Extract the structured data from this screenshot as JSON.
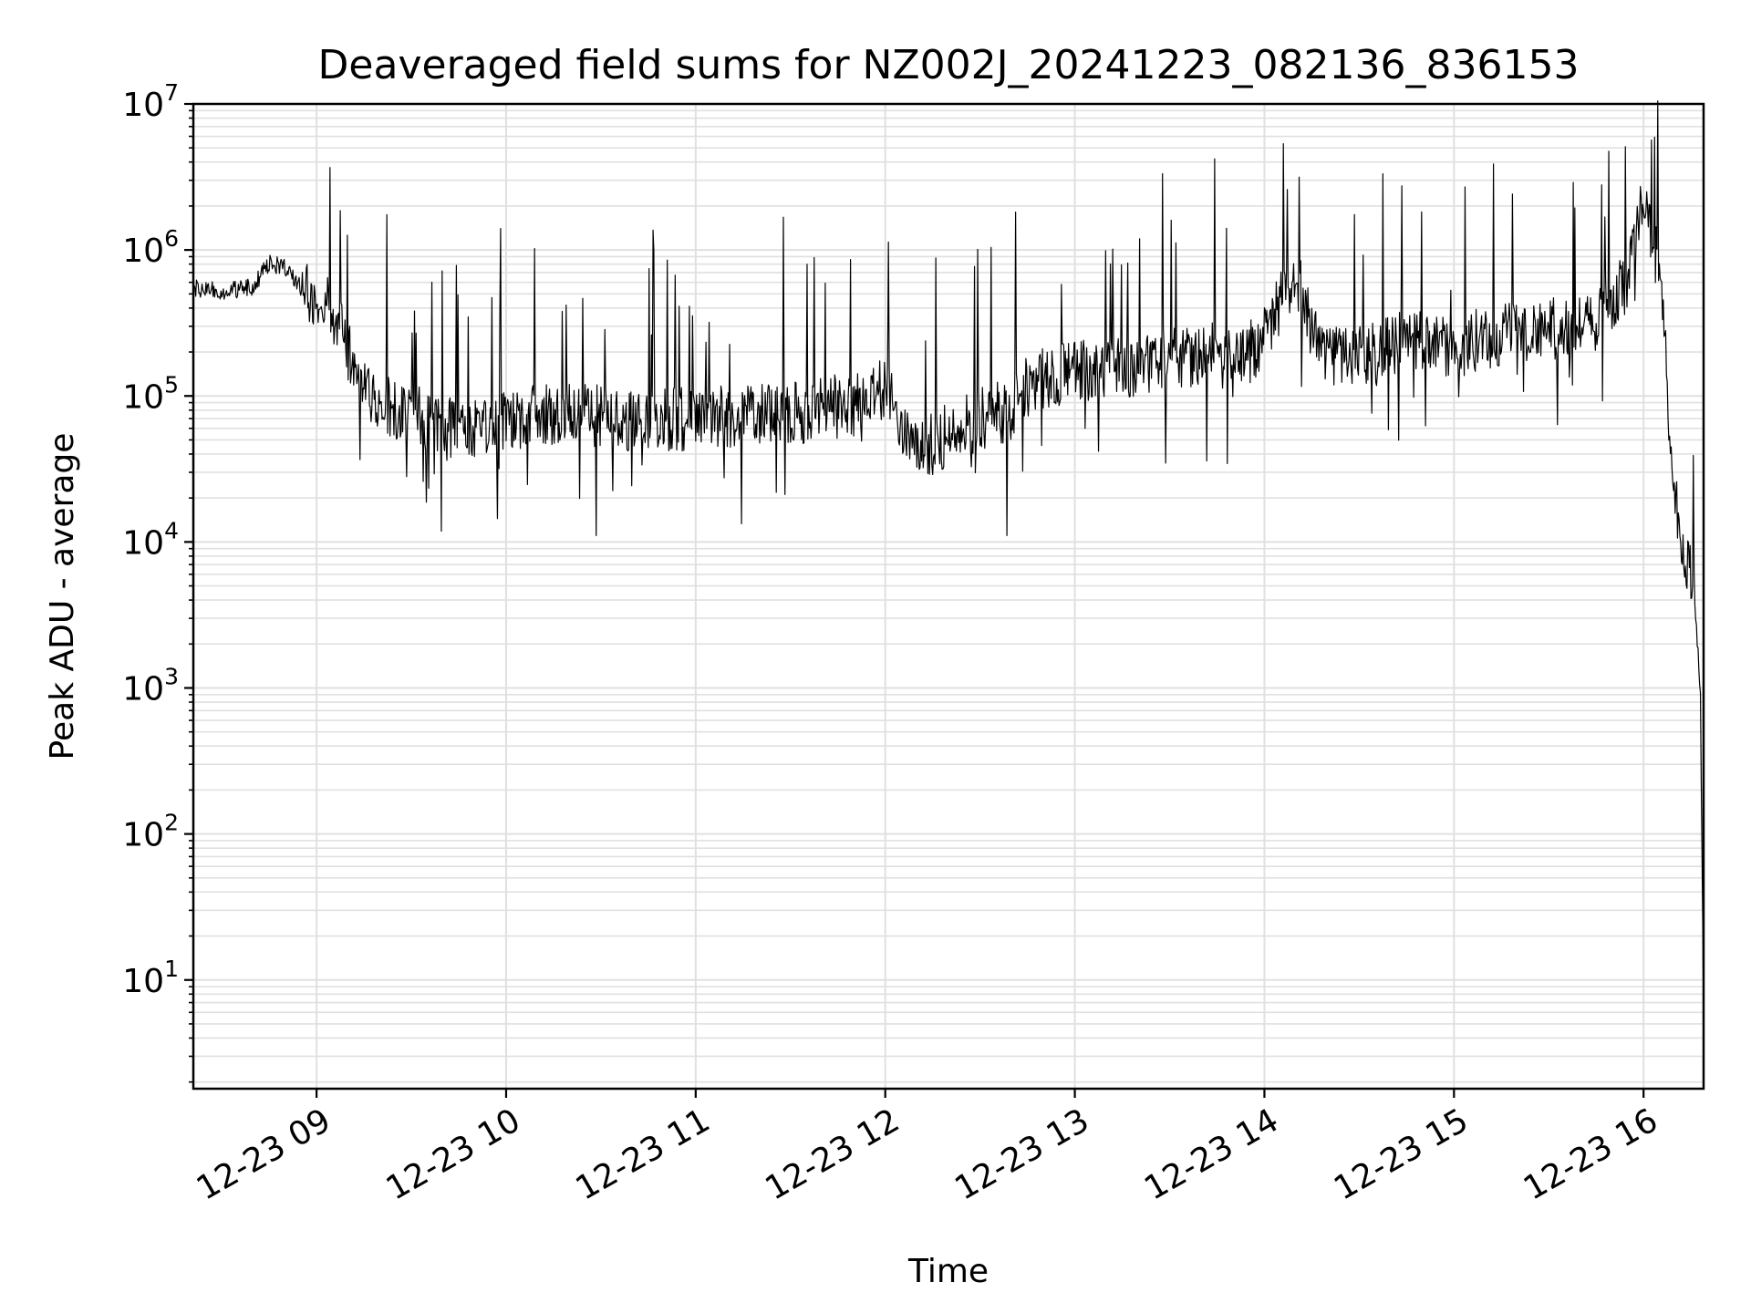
{
  "chart_data": {
    "type": "line",
    "title": "Deaveraged field sums for NZ002J_20241223_082136_836153",
    "xlabel": "Time",
    "ylabel": "Peak ADU - average",
    "yscale": "log",
    "grid": true,
    "x_ticks": [
      {
        "value": "2024-12-23 09:00",
        "label": "12-23 09"
      },
      {
        "value": "2024-12-23 10:00",
        "label": "12-23 10"
      },
      {
        "value": "2024-12-23 11:00",
        "label": "12-23 11"
      },
      {
        "value": "2024-12-23 12:00",
        "label": "12-23 12"
      },
      {
        "value": "2024-12-23 13:00",
        "label": "12-23 13"
      },
      {
        "value": "2024-12-23 14:00",
        "label": "12-23 14"
      },
      {
        "value": "2024-12-23 15:00",
        "label": "12-23 15"
      },
      {
        "value": "2024-12-23 16:00",
        "label": "12-23 16"
      }
    ],
    "y_ticks": [
      {
        "value": 10,
        "base": "10",
        "exp": "1"
      },
      {
        "value": 100,
        "base": "10",
        "exp": "2"
      },
      {
        "value": 1000,
        "base": "10",
        "exp": "3"
      },
      {
        "value": 10000,
        "base": "10",
        "exp": "4"
      },
      {
        "value": 100000,
        "base": "10",
        "exp": "5"
      },
      {
        "value": 1000000,
        "base": "10",
        "exp": "6"
      },
      {
        "value": 10000000,
        "base": "10",
        "exp": "7"
      }
    ],
    "xlim": [
      "2024-12-23 08:21",
      "2024-12-23 16:19"
    ],
    "ylim": [
      1.8,
      10000000
    ],
    "line_color": "#000000",
    "grid_color": "#e0e0e0",
    "series": [
      {
        "x": [
          "08:21",
          "08:30",
          "08:40",
          "08:45",
          "08:50",
          "08:55",
          "09:00",
          "09:05",
          "09:10",
          "09:15",
          "09:20",
          "09:25",
          "09:30",
          "09:35",
          "09:40",
          "09:45",
          "09:50",
          "10:00",
          "10:15",
          "10:30",
          "10:45",
          "11:00",
          "11:15",
          "11:30",
          "11:45",
          "11:55",
          "12:00",
          "12:05",
          "12:10",
          "12:15",
          "12:20",
          "12:25",
          "12:30",
          "12:40",
          "12:45",
          "12:50",
          "13:00",
          "13:15",
          "13:30",
          "13:45",
          "13:50",
          "14:00",
          "14:05",
          "14:10",
          "14:15",
          "14:20",
          "14:30",
          "14:45",
          "15:00",
          "15:15",
          "15:30",
          "15:45",
          "15:50",
          "15:55",
          "16:00",
          "16:02",
          "16:05",
          "16:07",
          "16:08",
          "16:10",
          "16:12",
          "16:14",
          "16:16",
          "16:18",
          "16:19"
        ],
        "y": [
          550000,
          520000,
          560000,
          820000,
          750000,
          550000,
          500000,
          380000,
          200000,
          110000,
          85000,
          80000,
          75000,
          65000,
          60000,
          58000,
          62000,
          70000,
          75000,
          72000,
          68000,
          70000,
          72000,
          75000,
          85000,
          90000,
          120000,
          60000,
          50000,
          45000,
          55000,
          60000,
          70000,
          80000,
          120000,
          130000,
          150000,
          160000,
          180000,
          200000,
          160000,
          250000,
          450000,
          700000,
          300000,
          200000,
          180000,
          250000,
          220000,
          260000,
          280000,
          320000,
          450000,
          600000,
          2500000,
          1500000,
          700000,
          250000,
          60000,
          20000,
          10000,
          7000,
          6000,
          1000,
          5
        ]
      }
    ]
  }
}
